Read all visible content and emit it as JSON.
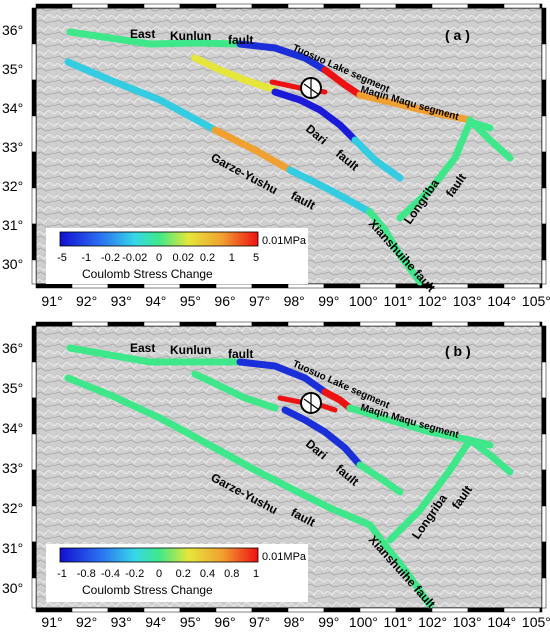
{
  "panels": [
    {
      "id": "a",
      "panel_label": "( a )",
      "colorbar": {
        "ticks": [
          "-5",
          "-1",
          "-0.2",
          "-0.02",
          "0",
          "0.02",
          "0.2",
          "1",
          "5"
        ],
        "unit": "0.01MPa",
        "title": "Coulomb Stress Change"
      }
    },
    {
      "id": "b",
      "panel_label": "( b )",
      "colorbar": {
        "ticks": [
          "-1",
          "-0.8",
          "-0.4",
          "-0.2",
          "0",
          "0.2",
          "0.4",
          "0.8",
          "1"
        ],
        "unit": "0.01MPa",
        "title": "Coulomb Stress Change"
      }
    }
  ],
  "axes": {
    "lon_ticks": [
      "91°",
      "92°",
      "93°",
      "94°",
      "95°",
      "96°",
      "97°",
      "98°",
      "99°",
      "100°",
      "101°",
      "102°",
      "103°",
      "104°",
      "105°"
    ],
    "lat_ticks": [
      "36°",
      "35°",
      "34°",
      "33°",
      "32°",
      "31°",
      "30°"
    ]
  },
  "fault_labels": {
    "east": "East",
    "kunlun": "Kunlun",
    "fault": "fault",
    "tuosuo": "Tuosuo Lake segment",
    "maqin": "Maqin Maqu segment",
    "dari": "Dari",
    "garze": "Garze-Yushu",
    "longriba": "Longriba",
    "xianshuihe": "Xianshuihe fault"
  },
  "colors": {
    "blue": "#1a1ad8",
    "cyan": "#33cce0",
    "green": "#3ee88a",
    "yellow": "#e6e63a",
    "orange": "#f0a030",
    "red": "#ee1111"
  }
}
